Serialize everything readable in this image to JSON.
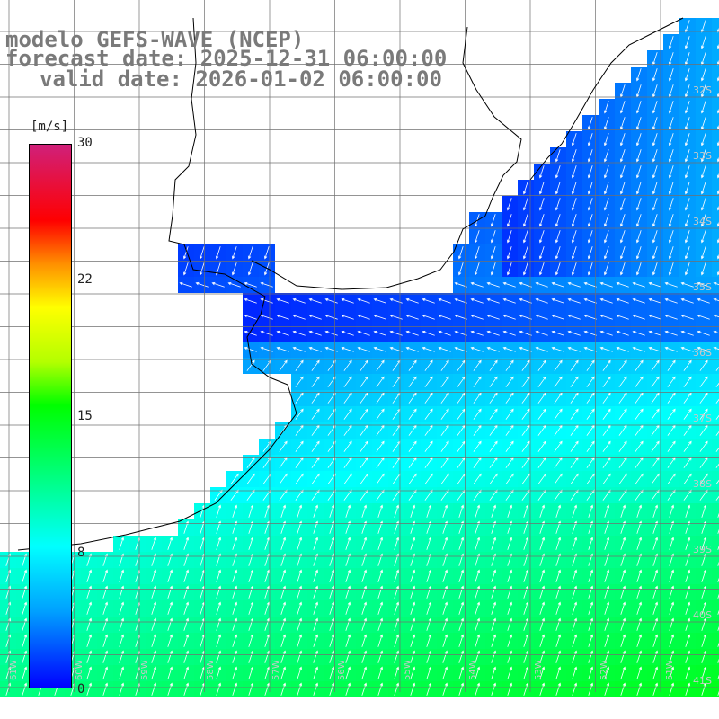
{
  "title": {
    "line1": "modelo GEFS-WAVE (NCEP)",
    "line2": "forecast date: 2025-12-31 06:00:00",
    "line3": "valid date: 2026-01-02 06:00:00"
  },
  "colorbar": {
    "unit": "[m/s]",
    "ticks": [
      "30",
      "22",
      "15",
      "8",
      "0"
    ],
    "min": 0,
    "max": 30,
    "colors": [
      "#0000ff",
      "#00a0ff",
      "#00ffff",
      "#00ff60",
      "#00ff00",
      "#ffff00",
      "#ff9000",
      "#ff0000",
      "#d0207a"
    ]
  },
  "axes": {
    "lat_labels": [
      "32S",
      "33S",
      "34S",
      "35S",
      "36S",
      "37S",
      "38S",
      "39S",
      "40S",
      "41S"
    ],
    "lon_labels": [
      "61W",
      "60W",
      "59W",
      "58W",
      "57W",
      "56W",
      "55W",
      "54W",
      "53W",
      "52W",
      "51W"
    ]
  },
  "colors": {
    "land": "#ffffff",
    "coast": "#000000",
    "grid": "#707070"
  }
}
